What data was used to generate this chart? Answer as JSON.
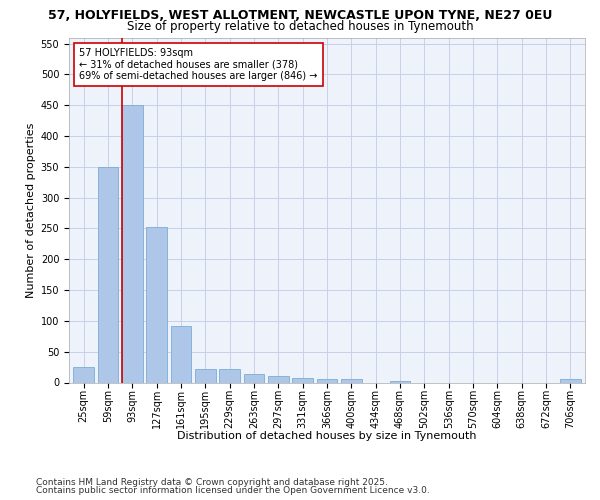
{
  "title1": "57, HOLYFIELDS, WEST ALLOTMENT, NEWCASTLE UPON TYNE, NE27 0EU",
  "title2": "Size of property relative to detached houses in Tynemouth",
  "xlabel": "Distribution of detached houses by size in Tynemouth",
  "ylabel": "Number of detached properties",
  "categories": [
    "25sqm",
    "59sqm",
    "93sqm",
    "127sqm",
    "161sqm",
    "195sqm",
    "229sqm",
    "263sqm",
    "297sqm",
    "331sqm",
    "366sqm",
    "400sqm",
    "434sqm",
    "468sqm",
    "502sqm",
    "536sqm",
    "570sqm",
    "604sqm",
    "638sqm",
    "672sqm",
    "706sqm"
  ],
  "values": [
    25,
    350,
    450,
    252,
    92,
    22,
    22,
    13,
    10,
    8,
    6,
    5,
    0,
    3,
    0,
    0,
    0,
    0,
    0,
    0,
    5
  ],
  "bar_color": "#aec6e8",
  "bar_edge_color": "#7aadd4",
  "vline_color": "#cc0000",
  "annotation_text": "57 HOLYFIELDS: 93sqm\n← 31% of detached houses are smaller (378)\n69% of semi-detached houses are larger (846) →",
  "annotation_box_color": "#ffffff",
  "annotation_box_edge": "#cc0000",
  "ylim": [
    0,
    560
  ],
  "yticks": [
    0,
    50,
    100,
    150,
    200,
    250,
    300,
    350,
    400,
    450,
    500,
    550
  ],
  "footer1": "Contains HM Land Registry data © Crown copyright and database right 2025.",
  "footer2": "Contains public sector information licensed under the Open Government Licence v3.0.",
  "bg_color": "#eef2fb",
  "grid_color": "#c8d0e8",
  "title_fontsize": 9,
  "subtitle_fontsize": 8.5,
  "axis_label_fontsize": 8,
  "tick_fontsize": 7,
  "annotation_fontsize": 7,
  "footer_fontsize": 6.5
}
